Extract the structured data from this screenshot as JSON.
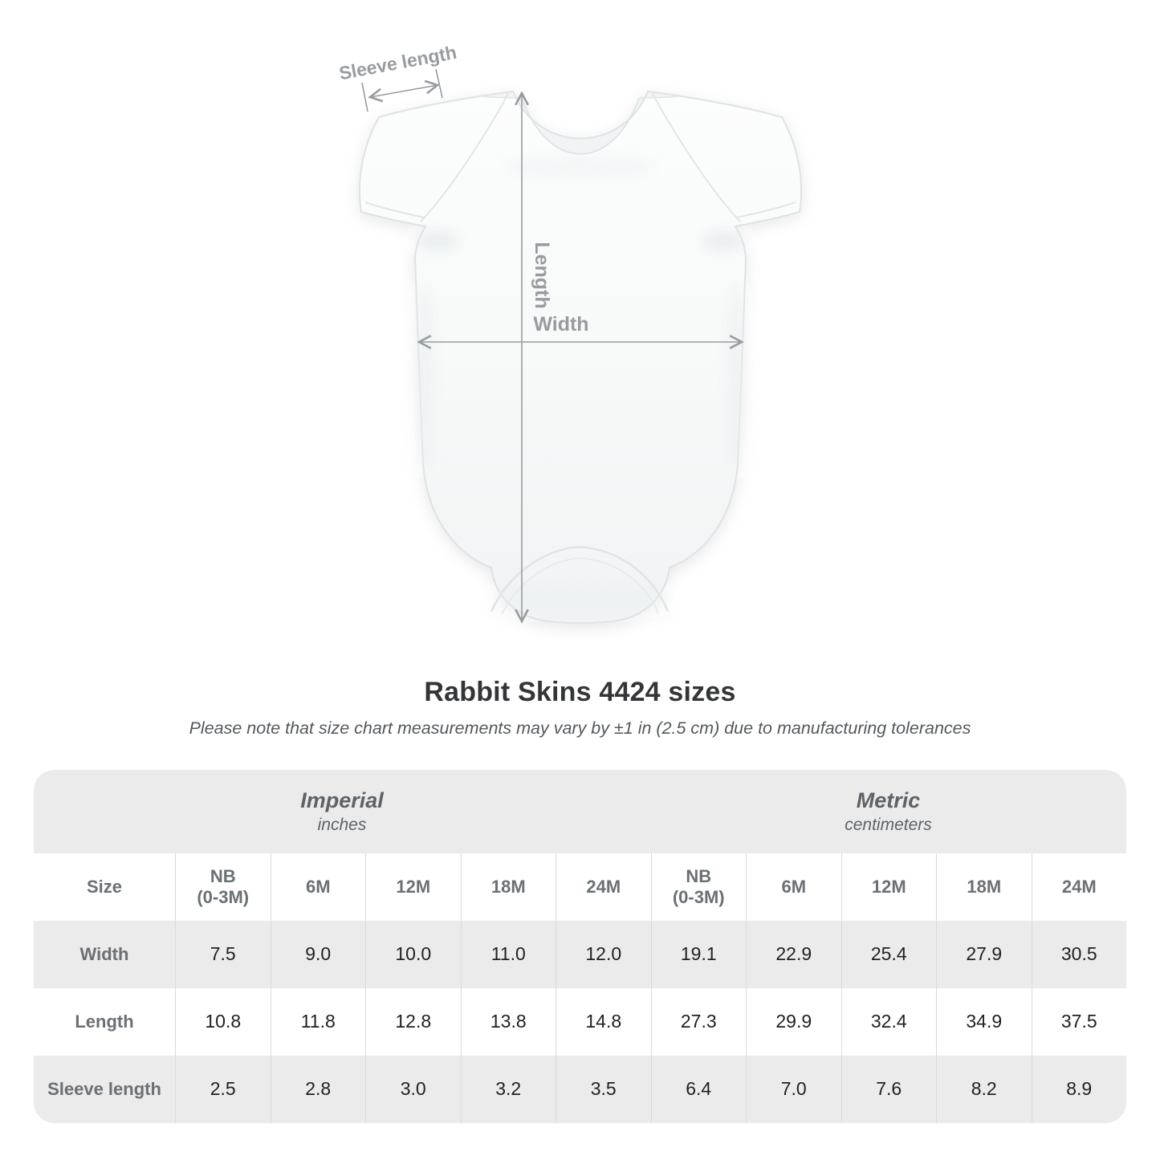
{
  "title": "Rabbit Skins 4424 sizes",
  "subtitle": "Please note that size chart measurements may vary by ±1 in (2.5 cm) due to manufacturing tolerances",
  "figure": {
    "sleeve_label": "Sleeve length",
    "length_label": "Length",
    "width_label": "Width"
  },
  "colors": {
    "annotation_grey": "#989ca0",
    "band_grey": "#ebebeb",
    "header_text_grey": "#6a7074",
    "value_text": "#1e2022",
    "garment_outline": "#dee2e4"
  },
  "table": {
    "size_header": "Size",
    "sections": [
      {
        "title": "Imperial",
        "unit": "inches"
      },
      {
        "title": "Metric",
        "unit": "centimeters"
      }
    ],
    "columns": [
      "NB\n(0-3M)",
      "6M",
      "12M",
      "18M",
      "24M",
      "NB\n(0-3M)",
      "6M",
      "12M",
      "18M",
      "24M"
    ],
    "rows": [
      {
        "label": "Width",
        "values": [
          "7.5",
          "9.0",
          "10.0",
          "11.0",
          "12.0",
          "19.1",
          "22.9",
          "25.4",
          "27.9",
          "30.5"
        ]
      },
      {
        "label": "Length",
        "values": [
          "10.8",
          "11.8",
          "12.8",
          "13.8",
          "14.8",
          "27.3",
          "29.9",
          "32.4",
          "34.9",
          "37.5"
        ]
      },
      {
        "label": "Sleeve length",
        "values": [
          "2.5",
          "2.8",
          "3.0",
          "3.2",
          "3.5",
          "6.4",
          "7.0",
          "7.6",
          "8.2",
          "8.9"
        ]
      }
    ]
  }
}
